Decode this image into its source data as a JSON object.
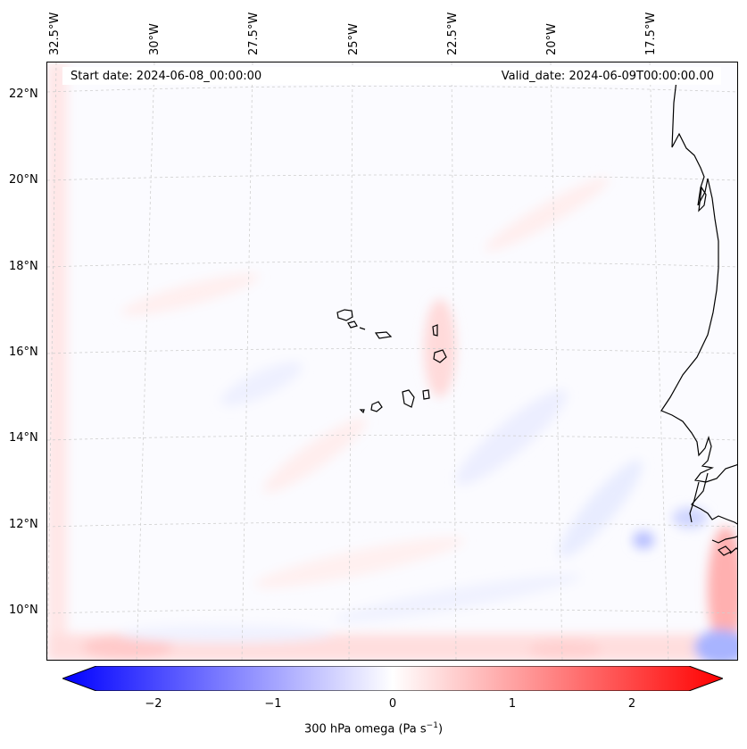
{
  "header": {
    "start_date": "Start date: 2024-06-08_00:00:00",
    "valid_date": "Valid_date: 2024-06-09T00:00:00.00"
  },
  "axes": {
    "lon_labels": [
      "32.5°W",
      "30°W",
      "27.5°W",
      "25°W",
      "22.5°W",
      "20°W",
      "17.5°W"
    ],
    "lat_labels": [
      "22°N",
      "20°N",
      "18°N",
      "16°N",
      "14°N",
      "12°N",
      "10°N"
    ]
  },
  "colorbar": {
    "tick_labels": [
      "−2",
      "−1",
      "0",
      "1",
      "2"
    ],
    "title_main": "300 hPa omega (Pa s",
    "title_sup": "−1",
    "title_end": ")",
    "range": [
      -2.7,
      2.7
    ],
    "low_color": "#0000ff",
    "mid_color": "#ffffff",
    "high_color": "#ff0000"
  },
  "map": {
    "projection": "conic",
    "region": "Cape Verde / West African coast",
    "coastline_color": "#000000",
    "gridlines": true
  }
}
